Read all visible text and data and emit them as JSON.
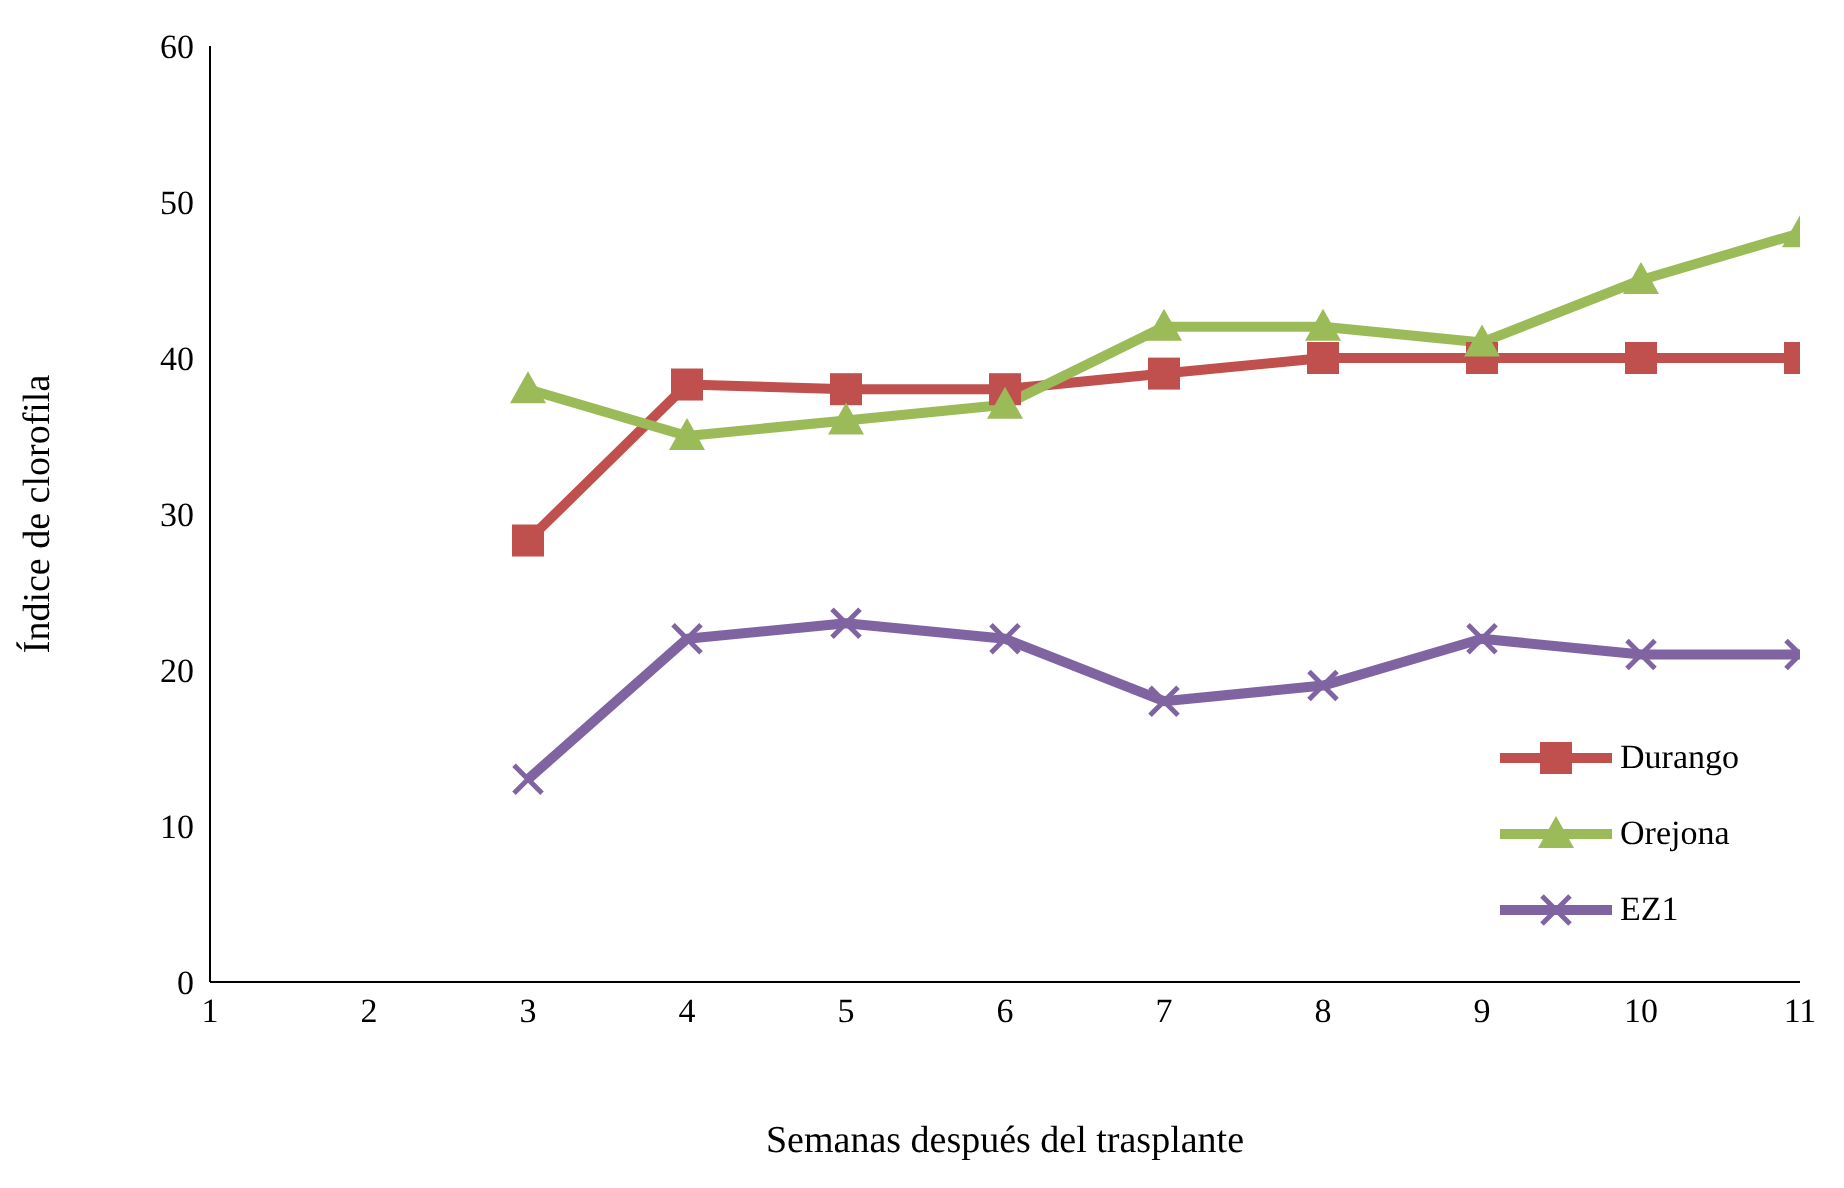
{
  "chart_data": {
    "type": "line",
    "xlabel": "Semanas después del trasplante",
    "ylabel": "Índice de clorofila",
    "x": [
      3,
      4,
      5,
      6,
      7,
      8,
      9,
      10,
      11
    ],
    "xlim": [
      1,
      11
    ],
    "xticks": [
      1,
      2,
      3,
      4,
      5,
      6,
      7,
      8,
      9,
      10,
      11
    ],
    "ylim": [
      0,
      60
    ],
    "yticks": [
      0,
      10,
      20,
      30,
      40,
      50,
      60
    ],
    "grid": false,
    "legend": "bottom right",
    "series": [
      {
        "name": "Durango",
        "color": "#c0504d",
        "marker": "square",
        "values": [
          28.3,
          38.3,
          38,
          38,
          39,
          40,
          40,
          40,
          40
        ]
      },
      {
        "name": "Orejona",
        "color": "#9bbb59",
        "marker": "triangle",
        "values": [
          38,
          35,
          36,
          37,
          42,
          42,
          41,
          45,
          48
        ]
      },
      {
        "name": "EZ1",
        "color": "#8064a2",
        "marker": "cross",
        "values": [
          13,
          22,
          23,
          22,
          18,
          19,
          22,
          21,
          21
        ]
      }
    ]
  }
}
